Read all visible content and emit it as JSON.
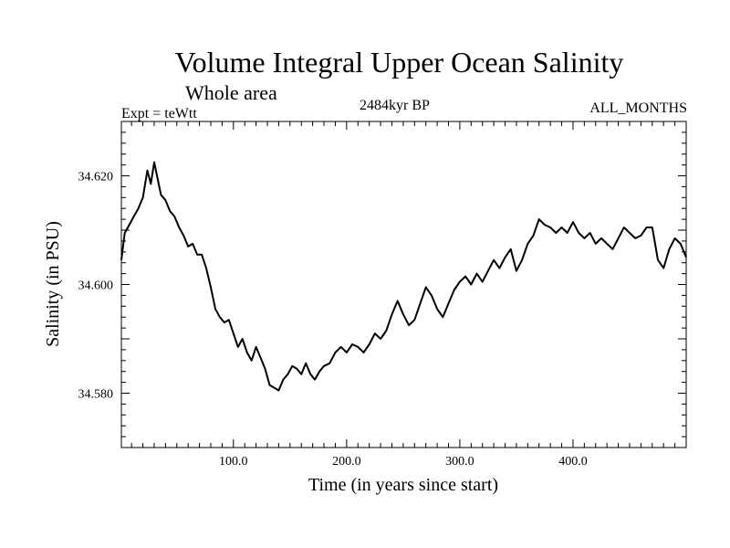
{
  "header": {
    "title": "Volume Integral Upper Ocean Salinity",
    "subtitle": "Whole area",
    "experiment": "Expt = teWtt",
    "period": "2484kyr BP",
    "months": "ALL_MONTHS"
  },
  "chart_data": {
    "type": "line",
    "title": "Volume Integral Upper Ocean Salinity",
    "xlabel": "Time (in years since start)",
    "ylabel": "Salinity (in PSU)",
    "xlim": [
      1,
      500
    ],
    "ylim": [
      34.57,
      34.63
    ],
    "x_ticks": [
      {
        "value": 100,
        "label": "100.0"
      },
      {
        "value": 200,
        "label": "200.0"
      },
      {
        "value": 300,
        "label": "300.0"
      },
      {
        "value": 400,
        "label": "400.0"
      }
    ],
    "y_ticks": [
      {
        "value": 34.58,
        "label": "34.580"
      },
      {
        "value": 34.6,
        "label": "34.600"
      },
      {
        "value": 34.62,
        "label": "34.620"
      }
    ],
    "grid": false,
    "series": [
      {
        "name": "Salinity",
        "x": [
          1,
          4,
          8,
          12,
          16,
          20,
          24,
          27,
          30,
          33,
          36,
          40,
          44,
          48,
          52,
          56,
          60,
          64,
          68,
          72,
          76,
          80,
          84,
          88,
          92,
          96,
          100,
          104,
          108,
          112,
          116,
          120,
          124,
          128,
          132,
          136,
          140,
          144,
          148,
          152,
          156,
          160,
          164,
          168,
          172,
          176,
          180,
          185,
          190,
          195,
          200,
          205,
          210,
          215,
          220,
          225,
          230,
          235,
          240,
          245,
          250,
          255,
          260,
          265,
          270,
          275,
          280,
          285,
          290,
          295,
          300,
          305,
          310,
          315,
          320,
          325,
          330,
          335,
          340,
          345,
          350,
          355,
          360,
          365,
          370,
          375,
          380,
          385,
          390,
          395,
          400,
          405,
          410,
          415,
          420,
          425,
          430,
          435,
          440,
          445,
          450,
          455,
          460,
          465,
          470,
          475,
          480,
          485,
          490,
          495,
          500
        ],
        "values": [
          34.6045,
          34.6095,
          34.611,
          34.6125,
          34.614,
          34.616,
          34.621,
          34.6185,
          34.6225,
          34.6195,
          34.6165,
          34.6155,
          34.6135,
          34.6125,
          34.6105,
          34.609,
          34.607,
          34.6075,
          34.6055,
          34.6055,
          34.603,
          34.5995,
          34.5955,
          34.594,
          34.593,
          34.5935,
          34.591,
          34.5885,
          34.59,
          34.5875,
          34.586,
          34.5885,
          34.5865,
          34.5845,
          34.5815,
          34.581,
          34.5805,
          34.5825,
          34.5835,
          34.585,
          34.5845,
          34.5835,
          34.5855,
          34.5835,
          34.5825,
          34.584,
          34.585,
          34.5855,
          34.5875,
          34.5885,
          34.5875,
          34.589,
          34.5885,
          34.5875,
          34.589,
          34.591,
          34.59,
          34.5915,
          34.5945,
          34.597,
          34.5945,
          34.5925,
          34.5935,
          34.5965,
          34.5995,
          34.598,
          34.5955,
          34.594,
          34.5965,
          34.599,
          34.6005,
          34.6015,
          34.6,
          34.602,
          34.6005,
          34.6025,
          34.6045,
          34.603,
          34.605,
          34.6065,
          34.6025,
          34.6045,
          34.6075,
          34.609,
          34.612,
          34.611,
          34.6105,
          34.6095,
          34.6105,
          34.6095,
          34.6115,
          34.6095,
          34.6085,
          34.6095,
          34.6075,
          34.6085,
          34.6075,
          34.6065,
          34.6085,
          34.6105,
          34.6095,
          34.6085,
          34.609,
          34.6105,
          34.6105,
          34.6045,
          34.603,
          34.6065,
          34.6085,
          34.6075,
          34.605
        ]
      }
    ]
  }
}
